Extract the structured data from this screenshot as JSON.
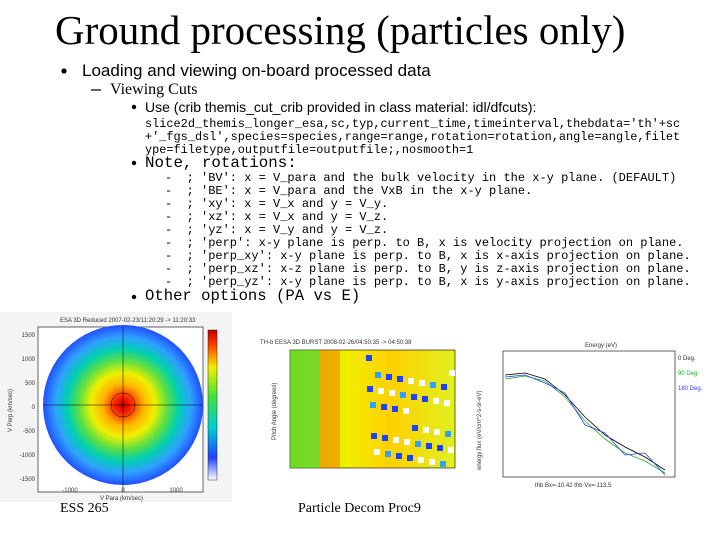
{
  "title": "Ground processing (particles only)",
  "level1": "Loading and viewing on-board processed data",
  "level2": "Viewing Cuts",
  "use_line": "Use (crib themis_cut_crib provided in class material: idl/dfcuts):",
  "code_lines": [
    "slice2d_themis_longer_esa,sc,typ,current_time,timeinterval,thebdata='th'+sc",
    "+'_fgs_dsl',species=species,range=range,rotation=rotation,angle=angle,filet",
    "ype=filetype,outputfile=outputfile;,nosmooth=1"
  ],
  "note": "Note, rotations:",
  "rotations": [
    "-  ; 'BV': x = V_para and the bulk velocity in the x-y plane. (DEFAULT)",
    "-  ; 'BE': x = V_para and the VxB in the x-y plane.",
    "-  ; 'xy': x = V_x and y = V_y.",
    "-  ; 'xz': x = V_x and y = V_z.",
    "-  ; 'yz': x = V_y and y = V_z.",
    "-  ; 'perp': x-y plane is perp. to B, x is velocity projection on plane.",
    "-  ; 'perp_xy': x-y plane is perp. to B, x is x-axis projection on plane.",
    "-  ; 'perp_xz': x-z plane is perp. to B, y is z-axis projection on plane.",
    "-  ; 'perp_yz': x-y plane is perp. to B, x is y-axis projection on plane."
  ],
  "other": "Other options (PA vs E)",
  "figures": {
    "left": {
      "title": "ESA 3D Reduced 2007-02-23/11:20:29 -> 11:20:33",
      "ylabel": "V Perp (km/sec)",
      "xlabel": "V Para (km/sec)",
      "yticks": [
        "1500",
        "1000",
        "500",
        "0",
        "-500",
        "-1000",
        "-1500"
      ],
      "xticks": [
        "-1000",
        "0",
        "1000"
      ]
    },
    "middle": {
      "title": "TH-b EESA 3D BURST 2008-02-26/04:50:35 -> 04:50:38",
      "ylabel": "Pitch Angle (degrees)"
    },
    "right": {
      "title": "Energy (eV)",
      "ylabel": "energy flux (eV/cm^2-s-sr-eV)",
      "legend": [
        "0 Deg.",
        "90 Deg.",
        "180 Deg."
      ],
      "footer": "thb Bx=-10.42 thb Vx=-113.5"
    }
  },
  "footer": {
    "left": "ESS 265",
    "center": "Particle Decom Proc9"
  }
}
